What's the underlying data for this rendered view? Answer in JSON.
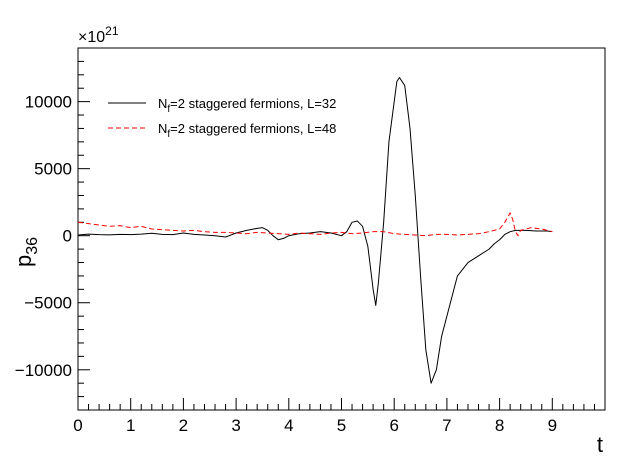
{
  "chart_data": {
    "type": "line",
    "title": "",
    "xlabel": "t",
    "ylabel": {
      "main": "p",
      "sub": "36"
    },
    "multiplier": {
      "prefix": "×10",
      "exponent": "21"
    },
    "xlim": [
      0,
      10
    ],
    "ylim": [
      -13000,
      14000
    ],
    "x_ticks": [
      0,
      1,
      2,
      3,
      4,
      5,
      6,
      7,
      8,
      9
    ],
    "y_ticks": [
      -10000,
      -5000,
      0,
      5000,
      10000
    ],
    "grid": false,
    "legend": "top-left",
    "series": [
      {
        "name": "N_f=2 staggered fermions, L=32",
        "legend_main": "N",
        "legend_sub": "f",
        "legend_rest": "=2 staggered fermions, L=32",
        "color": "#000000",
        "style": "solid",
        "points": [
          [
            0.0,
            50
          ],
          [
            0.2,
            120
          ],
          [
            0.4,
            80
          ],
          [
            0.6,
            60
          ],
          [
            0.8,
            100
          ],
          [
            1.0,
            80
          ],
          [
            1.2,
            120
          ],
          [
            1.4,
            180
          ],
          [
            1.6,
            100
          ],
          [
            1.8,
            80
          ],
          [
            2.0,
            200
          ],
          [
            2.2,
            100
          ],
          [
            2.4,
            50
          ],
          [
            2.6,
            0
          ],
          [
            2.8,
            -100
          ],
          [
            3.0,
            200
          ],
          [
            3.2,
            400
          ],
          [
            3.4,
            550
          ],
          [
            3.5,
            600
          ],
          [
            3.6,
            400
          ],
          [
            3.7,
            0
          ],
          [
            3.8,
            -300
          ],
          [
            3.9,
            -200
          ],
          [
            4.0,
            0
          ],
          [
            4.2,
            150
          ],
          [
            4.4,
            200
          ],
          [
            4.6,
            300
          ],
          [
            4.8,
            200
          ],
          [
            5.0,
            0
          ],
          [
            5.1,
            300
          ],
          [
            5.2,
            1000
          ],
          [
            5.3,
            1100
          ],
          [
            5.4,
            700
          ],
          [
            5.5,
            -800
          ],
          [
            5.6,
            -4000
          ],
          [
            5.65,
            -5200
          ],
          [
            5.7,
            -3500
          ],
          [
            5.8,
            1000
          ],
          [
            5.9,
            7000
          ],
          [
            6.0,
            10000
          ],
          [
            6.05,
            11500
          ],
          [
            6.1,
            11800
          ],
          [
            6.2,
            11200
          ],
          [
            6.3,
            8000
          ],
          [
            6.4,
            3000
          ],
          [
            6.5,
            -3000
          ],
          [
            6.6,
            -8500
          ],
          [
            6.7,
            -11000
          ],
          [
            6.8,
            -10000
          ],
          [
            6.9,
            -7500
          ],
          [
            7.0,
            -6000
          ],
          [
            7.1,
            -4500
          ],
          [
            7.2,
            -3000
          ],
          [
            7.4,
            -2000
          ],
          [
            7.6,
            -1500
          ],
          [
            7.8,
            -1000
          ],
          [
            7.9,
            -600
          ],
          [
            8.0,
            -300
          ],
          [
            8.1,
            100
          ],
          [
            8.2,
            300
          ],
          [
            8.3,
            400
          ],
          [
            8.5,
            400
          ],
          [
            8.7,
            350
          ],
          [
            8.9,
            350
          ],
          [
            9.0,
            300
          ]
        ]
      },
      {
        "name": "N_f=2 staggered fermions, L=48",
        "legend_main": "N",
        "legend_sub": "f",
        "legend_rest": "=2 staggered fermions, L=48",
        "color": "#ff0000",
        "style": "dashed",
        "points": [
          [
            0.0,
            1000
          ],
          [
            0.2,
            900
          ],
          [
            0.4,
            800
          ],
          [
            0.6,
            700
          ],
          [
            0.8,
            750
          ],
          [
            1.0,
            600
          ],
          [
            1.2,
            700
          ],
          [
            1.4,
            500
          ],
          [
            1.6,
            450
          ],
          [
            1.8,
            400
          ],
          [
            2.0,
            350
          ],
          [
            2.2,
            400
          ],
          [
            2.4,
            300
          ],
          [
            2.6,
            250
          ],
          [
            2.8,
            250
          ],
          [
            3.0,
            200
          ],
          [
            3.2,
            150
          ],
          [
            3.4,
            250
          ],
          [
            3.6,
            200
          ],
          [
            3.8,
            150
          ],
          [
            4.0,
            100
          ],
          [
            4.2,
            200
          ],
          [
            4.4,
            150
          ],
          [
            4.6,
            100
          ],
          [
            4.8,
            200
          ],
          [
            5.0,
            250
          ],
          [
            5.2,
            150
          ],
          [
            5.4,
            200
          ],
          [
            5.6,
            300
          ],
          [
            5.8,
            300
          ],
          [
            6.0,
            150
          ],
          [
            6.2,
            100
          ],
          [
            6.4,
            50
          ],
          [
            6.6,
            0
          ],
          [
            6.8,
            100
          ],
          [
            7.0,
            100
          ],
          [
            7.2,
            50
          ],
          [
            7.4,
            100
          ],
          [
            7.6,
            150
          ],
          [
            7.8,
            300
          ],
          [
            8.0,
            500
          ],
          [
            8.1,
            1000
          ],
          [
            8.2,
            1700
          ],
          [
            8.25,
            1200
          ],
          [
            8.3,
            300
          ],
          [
            8.35,
            0
          ],
          [
            8.4,
            400
          ],
          [
            8.6,
            600
          ],
          [
            8.8,
            500
          ],
          [
            9.0,
            300
          ]
        ]
      }
    ]
  }
}
